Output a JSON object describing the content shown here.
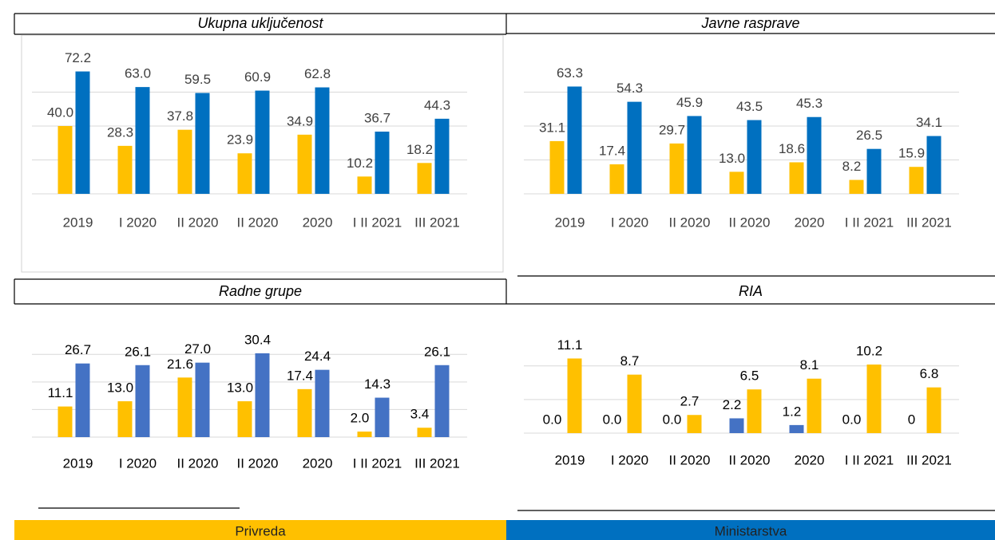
{
  "chart_data": [
    {
      "type": "bar",
      "title": "Ukupna uključenost",
      "categories": [
        "2019",
        "I 2020",
        "II 2020",
        "II 2020",
        "2020",
        "I II 2021",
        "III 2021"
      ],
      "series": [
        {
          "name": "Privreda",
          "color": "#FFC000",
          "values": [
            40.0,
            28.3,
            37.8,
            23.9,
            34.9,
            10.2,
            18.2
          ],
          "value_labels": [
            "40.0",
            "28.3",
            "37.8",
            "23.9",
            "34.9",
            "10.2",
            "18.2"
          ]
        },
        {
          "name": "Ministarstva",
          "color": "#0070C0",
          "values": [
            72.2,
            63.0,
            59.5,
            60.9,
            62.8,
            36.7,
            44.3
          ],
          "value_labels": [
            "72.2",
            "63.0",
            "59.5",
            "60.9",
            "62.8",
            "36.7",
            "44.3"
          ]
        }
      ],
      "ylim": [
        0,
        80
      ],
      "yticks": [
        0,
        20,
        40,
        60
      ],
      "grid": true
    },
    {
      "type": "bar",
      "title": "Javne rasprave",
      "categories": [
        "2019",
        "I 2020",
        "II 2020",
        "II 2020",
        "2020",
        "I II 2021",
        "III 2021"
      ],
      "series": [
        {
          "color": "#FFC000",
          "values": [
            31.1,
            17.4,
            29.7,
            13.0,
            18.6,
            8.2,
            15.9
          ],
          "value_labels": [
            "31.1",
            "17.4",
            "29.7",
            "13.0",
            "18.6",
            "8.2",
            "15.9"
          ]
        },
        {
          "color": "#0070C0",
          "values": [
            63.3,
            54.3,
            45.9,
            43.5,
            45.3,
            26.5,
            34.1
          ],
          "value_labels": [
            "63.3",
            "54.3",
            "45.9",
            "43.5",
            "45.3",
            "26.5",
            "34.1"
          ]
        }
      ],
      "ylim": [
        0,
        80
      ],
      "yticks": [
        0,
        20,
        40,
        60
      ],
      "grid": true
    },
    {
      "type": "bar",
      "title": "Radne grupe",
      "categories": [
        "2019",
        "I 2020",
        "II 2020",
        "II 2020",
        "2020",
        "I II 2021",
        "III 2021"
      ],
      "series": [
        {
          "color": "#FFC000",
          "values": [
            11.1,
            13.0,
            21.6,
            13.0,
            17.4,
            2.0,
            3.4
          ],
          "value_labels": [
            "11.1",
            "13.0",
            "21.6",
            "13.0",
            "17.4",
            "2.0",
            "3.4"
          ]
        },
        {
          "color": "#4472C4",
          "values": [
            26.7,
            26.1,
            27.0,
            30.4,
            24.4,
            14.3,
            26.1
          ],
          "value_labels": [
            "26.7",
            "26.1",
            "27.0",
            "30.4",
            "24.4",
            "14.3",
            "26.1"
          ]
        }
      ],
      "ylim": [
        0,
        35
      ],
      "yticks": [
        0,
        10,
        20,
        30
      ],
      "grid": true
    },
    {
      "type": "bar",
      "title": "RIA",
      "categories": [
        "2019",
        "I 2020",
        "II 2020",
        "II 2020",
        "2020",
        "I II 2021",
        "III 2021"
      ],
      "series": [
        {
          "color": "#4472C4",
          "values": [
            0.0,
            0.0,
            0.0,
            2.2,
            1.2,
            0.0,
            0
          ],
          "value_labels": [
            "0.0",
            "0.0",
            "0.0",
            "2.2",
            "1.2",
            "0.0",
            "0"
          ]
        },
        {
          "color": "#FFC000",
          "values": [
            11.1,
            8.7,
            2.7,
            6.5,
            8.1,
            10.2,
            6.8
          ],
          "value_labels": [
            "11.1",
            "8.7",
            "2.7",
            "6.5",
            "8.1",
            "10.2",
            "6.8"
          ]
        }
      ],
      "ylim": [
        0,
        14
      ],
      "yticks": [
        0,
        5,
        10
      ],
      "grid": true
    }
  ]
}
